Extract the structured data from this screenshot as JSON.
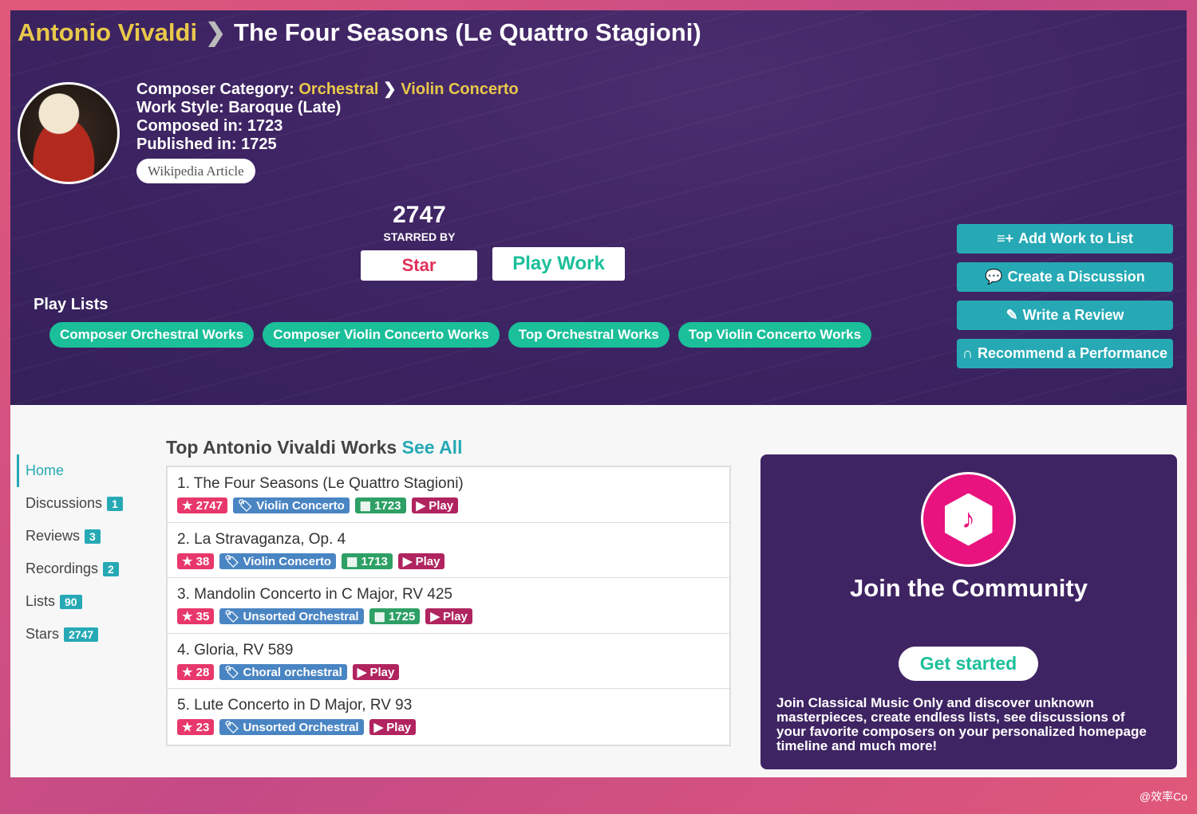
{
  "header": {
    "composer": "Antonio Vivaldi",
    "work": "The Four Seasons (Le Quattro Stagioni)"
  },
  "meta": {
    "category_label": "Composer Category:",
    "category": "Orchestral",
    "subcategory": "Violin Concerto",
    "style": "Work Style: Baroque (Late)",
    "composed": "Composed in: 1723",
    "published": "Published in: 1725",
    "wiki": "Wikipedia Article"
  },
  "stars": {
    "count": "2747",
    "label": "STARRED BY",
    "star_button": "Star",
    "play_button": "Play Work"
  },
  "playlists": {
    "title": "Play Lists",
    "items": [
      "Composer Orchestral Works",
      "Composer Violin Concerto Works",
      "Top Orchestral Works",
      "Top Violin Concerto Works"
    ]
  },
  "actions": [
    {
      "icon": "≡+",
      "label": "Add Work to List"
    },
    {
      "icon": "💬",
      "label": "Create a Discussion"
    },
    {
      "icon": "✎",
      "label": "Write a Review"
    },
    {
      "icon": "∩",
      "label": "Recommend a Performance"
    }
  ],
  "sidebar": [
    {
      "label": "Home"
    },
    {
      "label": "Discussions",
      "count": "1"
    },
    {
      "label": "Reviews",
      "count": "3"
    },
    {
      "label": "Recordings",
      "count": "2"
    },
    {
      "label": "Lists",
      "count": "90"
    },
    {
      "label": "Stars",
      "count": "2747"
    }
  ],
  "works": {
    "title": "Top Antonio Vivaldi Works",
    "see_all": "See All",
    "items": [
      {
        "title": "1. The Four Seasons (Le Quattro Stagioni)",
        "stars": "2747",
        "tag": "Violin Concerto",
        "year": "1723",
        "play": "Play"
      },
      {
        "title": "2. La Stravaganza, Op. 4",
        "stars": "38",
        "tag": "Violin Concerto",
        "year": "1713",
        "play": "Play"
      },
      {
        "title": "3. Mandolin Concerto in C Major, RV 425",
        "stars": "35",
        "tag": "Unsorted Orchestral",
        "year": "1725",
        "play": "Play"
      },
      {
        "title": "4. Gloria, RV 589",
        "stars": "28",
        "tag": "Choral orchestral",
        "play": "Play"
      },
      {
        "title": "5. Lute Concerto in D Major, RV 93",
        "stars": "23",
        "tag": "Unsorted Orchestral",
        "play": "Play"
      }
    ]
  },
  "community": {
    "title": "Join the Community",
    "button": "Get started",
    "text": "Join Classical Music Only and discover unknown masterpieces, create endless lists, see discussions of your favorite composers on your personalized homepage timeline and much more!"
  },
  "watermark": "@效率Co"
}
